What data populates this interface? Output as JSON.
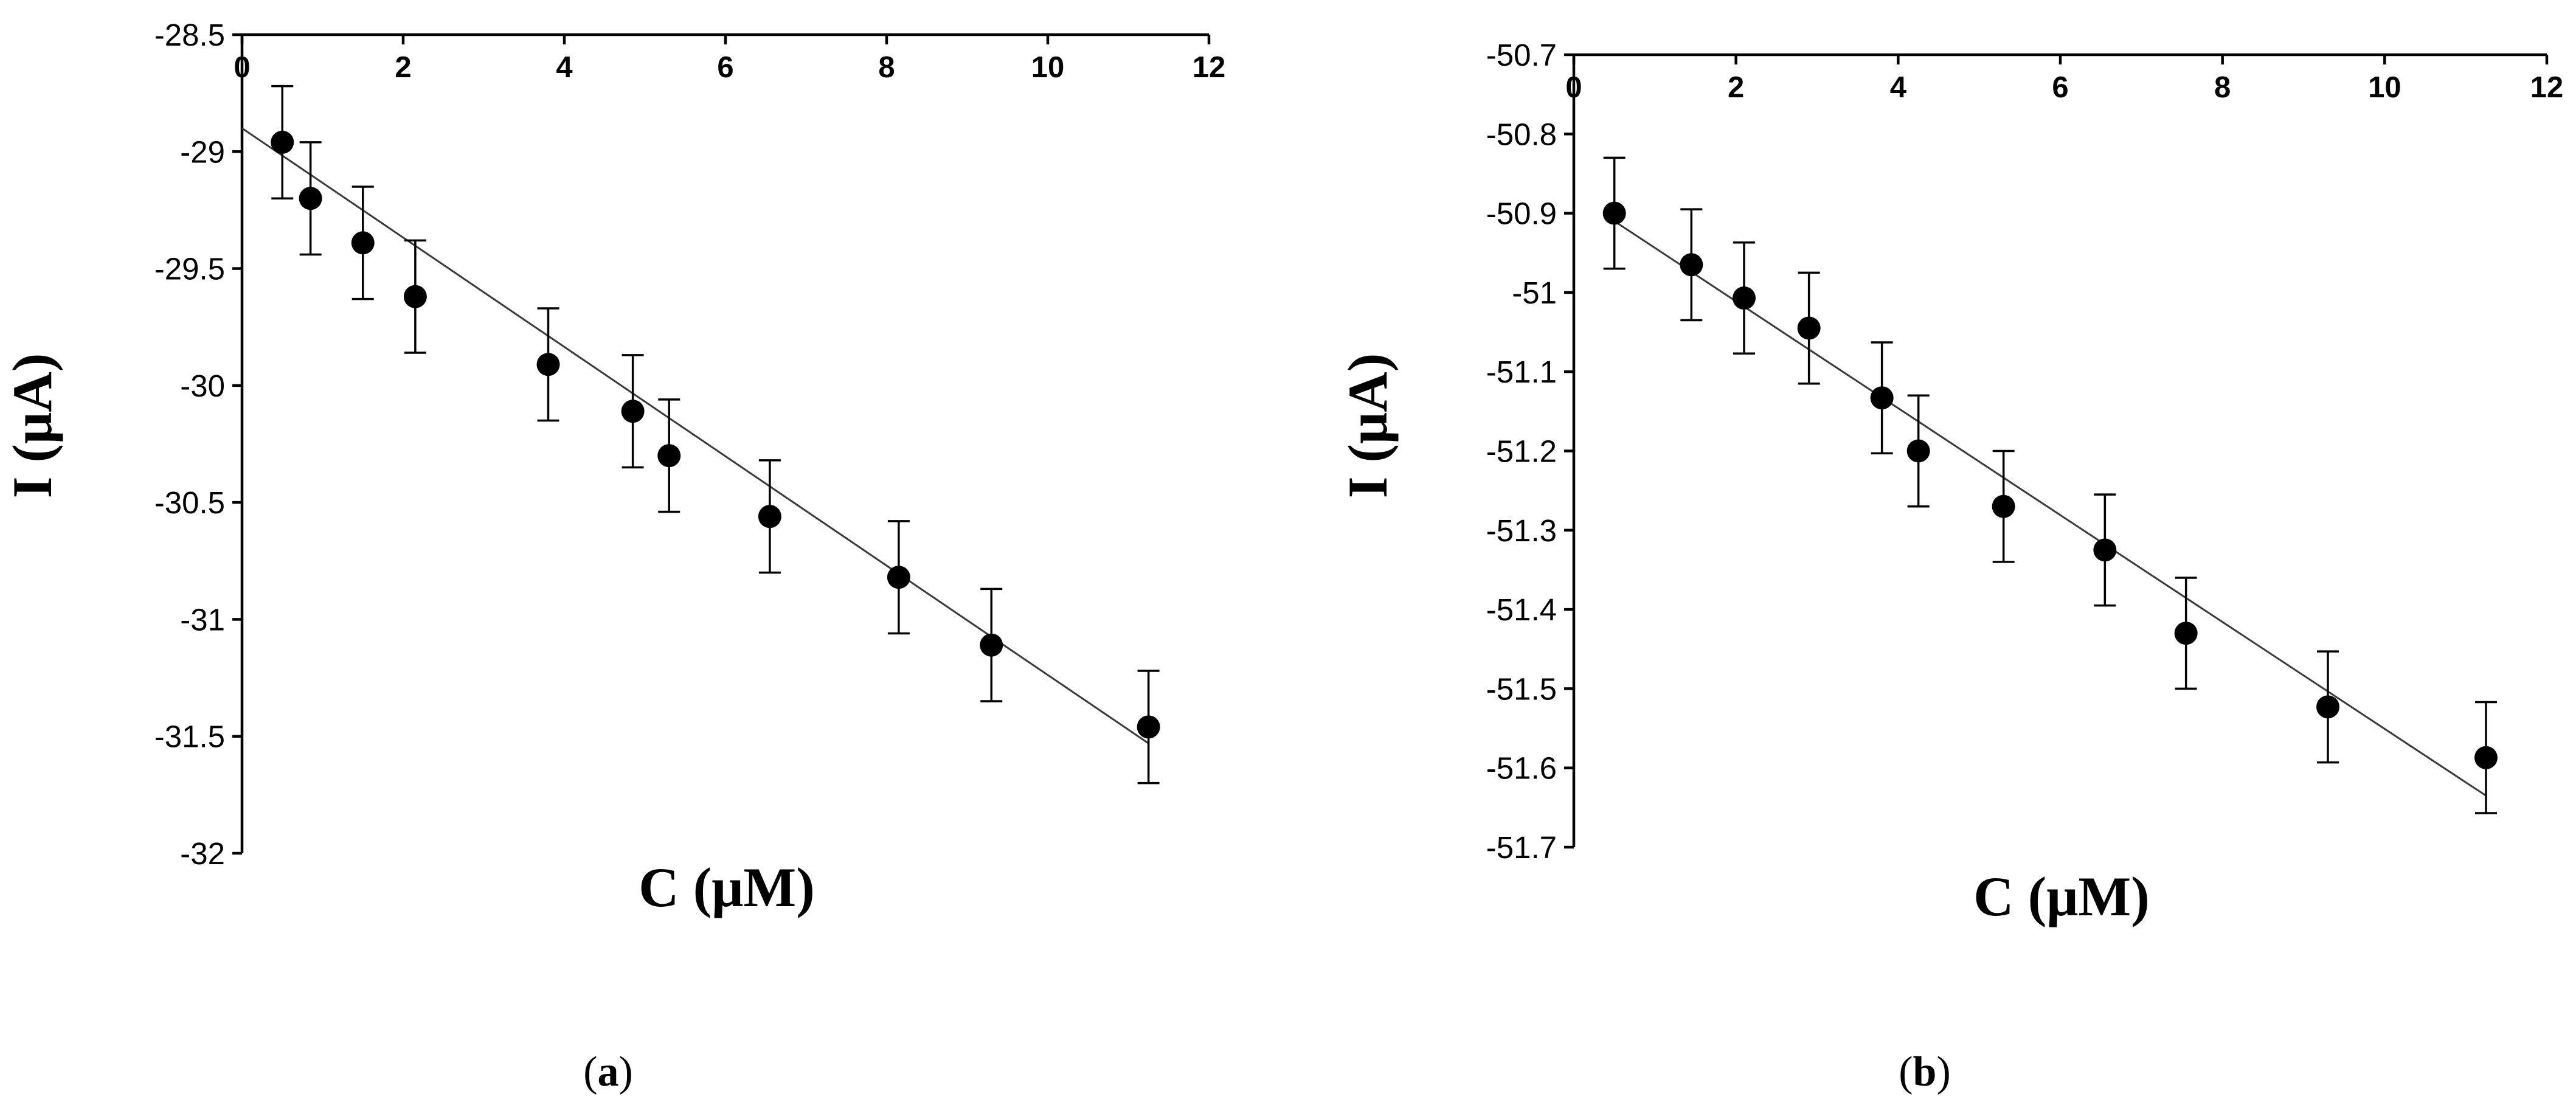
{
  "chart_data": [
    {
      "type": "scatter",
      "panel_label": {
        "open": "(",
        "letter": "a",
        "close": ")"
      },
      "xlabel": "C (μM)",
      "ylabel": "I (μA)",
      "xlim": [
        0,
        12
      ],
      "ylim": [
        -32,
        -28.5
      ],
      "x_ticks": [
        "0",
        "2",
        "4",
        "6",
        "8",
        "10",
        "12"
      ],
      "y_ticks": [
        "-28.5",
        "-29",
        "-29.5",
        "-30",
        "-30.5",
        "-31",
        "-31.5",
        "-32"
      ],
      "x_axis_position": "top",
      "grid": false,
      "legend": "none",
      "series": [
        {
          "x": [
            0.5,
            0.85,
            1.5,
            2.15,
            3.8,
            4.85,
            5.3,
            6.55,
            8.15,
            9.3,
            11.25
          ],
          "y": [
            -28.96,
            -29.2,
            -29.39,
            -29.62,
            -29.91,
            -30.11,
            -30.3,
            -30.56,
            -30.82,
            -31.11,
            -31.46
          ],
          "error": 0.24
        }
      ],
      "trendline": {
        "x": [
          0,
          11.25
        ],
        "y": [
          -28.9,
          -31.53
        ]
      }
    },
    {
      "type": "scatter",
      "panel_label": {
        "open": "(",
        "letter": "b",
        "close": ")"
      },
      "xlabel": "C (μM)",
      "ylabel": "I (μA)",
      "xlim": [
        0,
        12
      ],
      "ylim": [
        -51.7,
        -50.7
      ],
      "x_ticks": [
        "0",
        "2",
        "4",
        "6",
        "8",
        "10",
        "12"
      ],
      "y_ticks": [
        "-50.7",
        "-50.8",
        "-50.9",
        "-51",
        "-51.1",
        "-51.2",
        "-51.3",
        "-51.4",
        "-51.5",
        "-51.6",
        "-51.7"
      ],
      "x_axis_position": "top",
      "grid": false,
      "legend": "none",
      "series": [
        {
          "x": [
            0.5,
            1.45,
            2.1,
            2.9,
            3.8,
            4.25,
            5.3,
            6.55,
            7.55,
            9.3,
            11.25
          ],
          "y": [
            -50.9,
            -50.965,
            -51.007,
            -51.045,
            -51.133,
            -51.2,
            -51.27,
            -51.325,
            -51.43,
            -51.523,
            -51.587
          ],
          "error": 0.07
        }
      ],
      "trendline": {
        "x": [
          0.5,
          11.25
        ],
        "y": [
          -50.91,
          -51.635
        ]
      }
    }
  ]
}
